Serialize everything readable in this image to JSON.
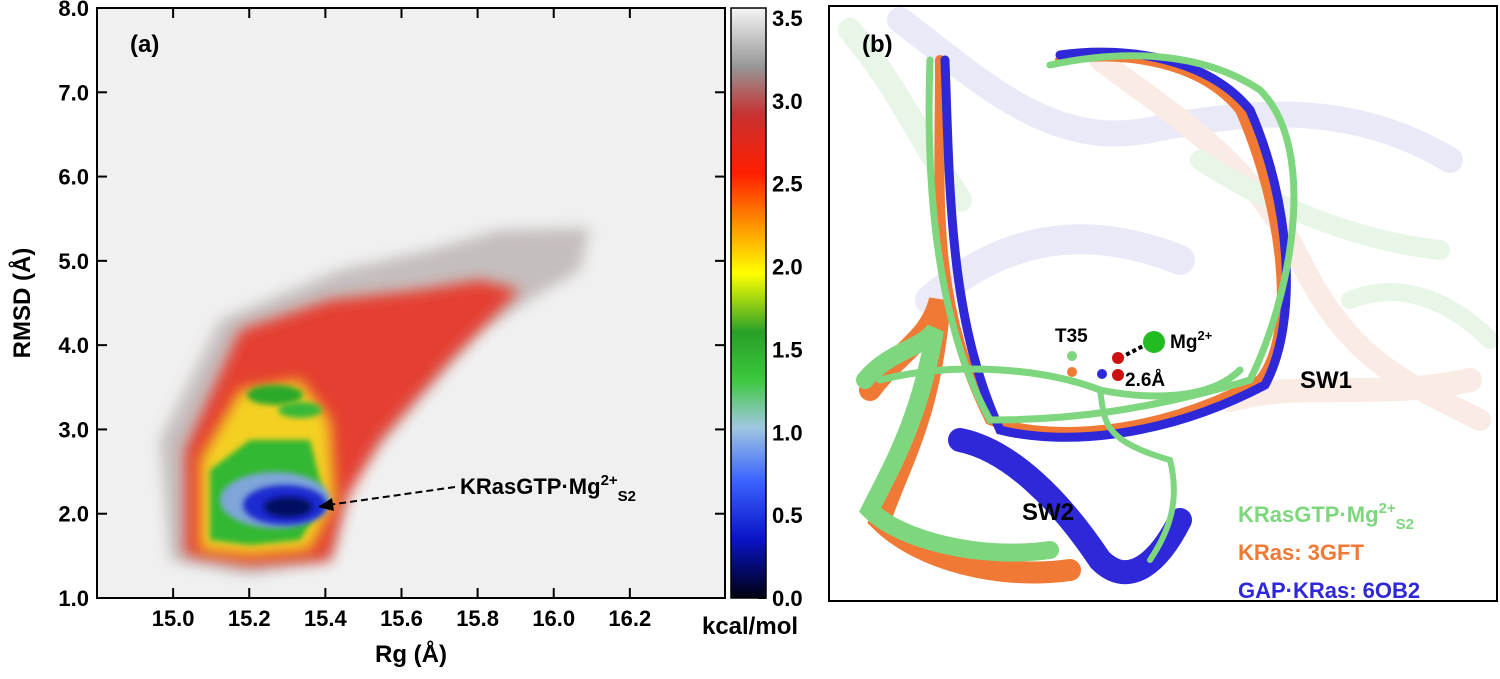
{
  "chart_data": {
    "type": "heatmap",
    "panel_label": "(a)",
    "xlabel": "Rg (Å)",
    "ylabel": "RMSD (Å)",
    "xlim": [
      14.8,
      16.45
    ],
    "ylim": [
      1,
      8
    ],
    "xticks": [
      {
        "value": 15,
        "label": "15.0"
      },
      15.2,
      15.4,
      15.6,
      15.8,
      {
        "value": 16,
        "label": "16.0"
      },
      16.2
    ],
    "yticks": [
      {
        "value": 1,
        "label": "1.0"
      },
      {
        "value": 2,
        "label": "2.0"
      },
      {
        "value": 3,
        "label": "3.0"
      },
      {
        "value": 4,
        "label": "4.0"
      },
      {
        "value": 5,
        "label": "5.0"
      },
      {
        "value": 6,
        "label": "6.0"
      },
      {
        "value": 7,
        "label": "7.0"
      },
      {
        "value": 8,
        "label": "8.0"
      }
    ],
    "colorbar": {
      "label": "kcal/mol",
      "lim": [
        0,
        3.5
      ],
      "ticks": [
        {
          "value": 0,
          "label": "0.0"
        },
        0.5,
        {
          "value": 1,
          "label": "1.0"
        },
        1.5,
        {
          "value": 2,
          "label": "2.0"
        },
        2.5,
        {
          "value": 3,
          "label": "3.0"
        },
        3.5
      ]
    },
    "annotation": {
      "text": "KRasGTP·Mg",
      "sup": "2+",
      "sub": "S2"
    }
  },
  "structure_panel": {
    "panel_label": "(b)",
    "labels": {
      "residue": "T35",
      "ion": "Mg",
      "ion_charge": "2+",
      "distance": "2.6Å",
      "switch1": "SW1",
      "switch2": "SW2"
    },
    "legend": [
      {
        "name": "KRasGTP·Mg",
        "sup": "2+",
        "sub": "S2",
        "color": "#7ed67e"
      },
      {
        "name": "KRas: 3GFT",
        "color": "#f07a35"
      },
      {
        "name": "GAP·KRas: 6OB2",
        "color": "#2f28d8"
      }
    ]
  }
}
